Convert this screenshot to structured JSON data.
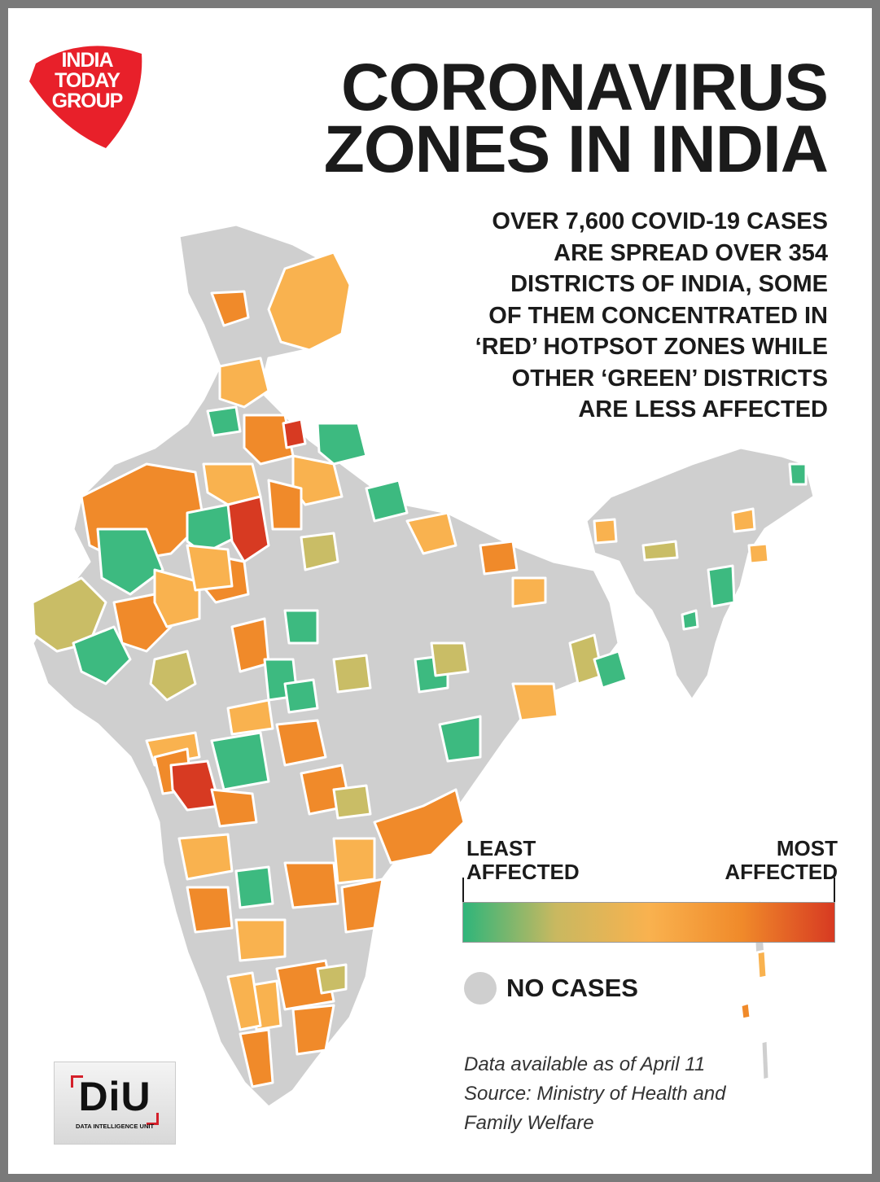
{
  "logo": {
    "lines": [
      "INDIA",
      "TODAY",
      "GROUP"
    ],
    "color": "#e8202a"
  },
  "title": {
    "line1": "CORONAVIRUS",
    "line2": "ZONES IN INDIA"
  },
  "subtitle": {
    "lines": [
      "OVER 7,600 COVID-19 CASES",
      "ARE SPREAD OVER 354",
      "DISTRICTS OF INDIA, SOME",
      "OF THEM CONCENTRATED IN",
      "‘RED’ HOTPSOT ZONES WHILE",
      "OTHER ‘GREEN’ DISTRICTS",
      "ARE LESS AFFECTED"
    ]
  },
  "legend": {
    "low_lines": [
      "LEAST",
      "AFFECTED"
    ],
    "high_lines": [
      "MOST",
      "AFFECTED"
    ],
    "gradient": [
      "#2fb57a",
      "#c9b860",
      "#f9b24f",
      "#f08a2a",
      "#d73a22"
    ],
    "no_cases_label": "NO CASES",
    "no_cases_color": "#cfcfcf"
  },
  "note": {
    "lines": [
      "Data available as of April 11",
      "Source: Ministry of Health and",
      "Family Welfare"
    ]
  },
  "diu": {
    "short": "DiU",
    "full": "DATA INTELLIGENCE UNIT"
  },
  "map_colors": {
    "no_cases": "#cfcfcf",
    "least": "#3dba80",
    "low": "#c9bd66",
    "mid": "#f9b24f",
    "high": "#f08a2a",
    "most": "#d73a22"
  }
}
